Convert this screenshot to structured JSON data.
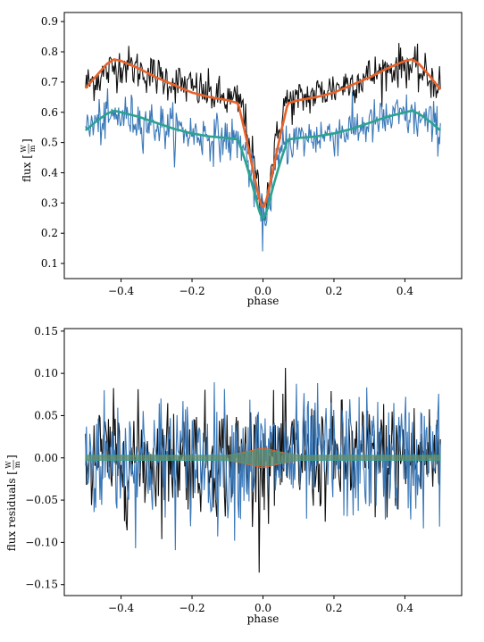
{
  "chart_data": [
    {
      "type": "line",
      "xlabel": "phase",
      "ylabel": "flux [W/m²]",
      "ylabel_main": "flux [",
      "ylabel_unit_num": "W",
      "ylabel_unit_den": "m",
      "ylabel_close": "]",
      "xlim": [
        -0.56,
        0.56
      ],
      "ylim": [
        0.05,
        0.93
      ],
      "xticks": [
        -0.4,
        -0.2,
        0.0,
        0.2,
        0.4
      ],
      "xtick_labels": [
        "−0.4",
        "−0.2",
        "0.0",
        "0.2",
        "0.4"
      ],
      "yticks": [
        0.1,
        0.2,
        0.3,
        0.4,
        0.5,
        0.6,
        0.7,
        0.8,
        0.9
      ],
      "ytick_labels": [
        "0.1",
        "0.2",
        "0.3",
        "0.4",
        "0.5",
        "0.6",
        "0.7",
        "0.8",
        "0.9"
      ],
      "grid": false,
      "series": [
        {
          "kind": "noisy",
          "color": "#111111",
          "x": [
            -0.5,
            -0.4,
            -0.3,
            -0.2,
            -0.1,
            -0.06,
            -0.03,
            0.0,
            0.03,
            0.06,
            0.1,
            0.2,
            0.3,
            0.4,
            0.5
          ],
          "values": [
            0.69,
            0.76,
            0.72,
            0.68,
            0.64,
            0.63,
            0.45,
            0.27,
            0.45,
            0.63,
            0.64,
            0.68,
            0.72,
            0.76,
            0.69
          ],
          "noise": 0.045
        },
        {
          "kind": "noisy",
          "color": "#3a78b8",
          "x": [
            -0.5,
            -0.4,
            -0.3,
            -0.2,
            -0.1,
            -0.06,
            -0.03,
            0.0,
            0.03,
            0.06,
            0.1,
            0.2,
            0.3,
            0.4,
            0.5
          ],
          "values": [
            0.55,
            0.59,
            0.56,
            0.53,
            0.51,
            0.5,
            0.38,
            0.23,
            0.38,
            0.5,
            0.51,
            0.53,
            0.56,
            0.59,
            0.55
          ],
          "noise": 0.05
        },
        {
          "kind": "model",
          "color": "#e8622a",
          "x": [
            -0.5,
            -0.47,
            -0.44,
            -0.42,
            -0.4,
            -0.35,
            -0.3,
            -0.25,
            -0.2,
            -0.15,
            -0.1,
            -0.07,
            -0.05,
            -0.03,
            -0.01,
            0.0,
            0.01,
            0.03,
            0.05,
            0.07,
            0.1,
            0.15,
            0.2,
            0.25,
            0.3,
            0.35,
            0.4,
            0.42,
            0.44,
            0.47,
            0.5
          ],
          "values": [
            0.68,
            0.72,
            0.76,
            0.775,
            0.77,
            0.745,
            0.715,
            0.69,
            0.665,
            0.65,
            0.64,
            0.63,
            0.53,
            0.42,
            0.31,
            0.28,
            0.31,
            0.42,
            0.53,
            0.63,
            0.64,
            0.65,
            0.665,
            0.69,
            0.715,
            0.745,
            0.77,
            0.775,
            0.76,
            0.72,
            0.675
          ]
        },
        {
          "kind": "model",
          "color": "#2aa38f",
          "x": [
            -0.5,
            -0.47,
            -0.44,
            -0.42,
            -0.4,
            -0.35,
            -0.3,
            -0.25,
            -0.2,
            -0.15,
            -0.1,
            -0.07,
            -0.05,
            -0.03,
            -0.01,
            0.0,
            0.01,
            0.03,
            0.05,
            0.07,
            0.1,
            0.15,
            0.2,
            0.25,
            0.3,
            0.35,
            0.4,
            0.42,
            0.44,
            0.47,
            0.5
          ],
          "values": [
            0.54,
            0.57,
            0.595,
            0.605,
            0.6,
            0.585,
            0.565,
            0.545,
            0.53,
            0.52,
            0.515,
            0.51,
            0.44,
            0.36,
            0.27,
            0.245,
            0.27,
            0.36,
            0.44,
            0.51,
            0.515,
            0.52,
            0.53,
            0.545,
            0.565,
            0.585,
            0.6,
            0.605,
            0.595,
            0.57,
            0.54
          ]
        }
      ]
    },
    {
      "type": "line",
      "xlabel": "phase",
      "ylabel": "flux residuals [W/m²]",
      "ylabel_main": "flux residuals [",
      "ylabel_unit_num": "W",
      "ylabel_unit_den": "m",
      "ylabel_close": "]",
      "xlim": [
        -0.56,
        0.56
      ],
      "ylim": [
        -0.163,
        0.153
      ],
      "xticks": [
        -0.4,
        -0.2,
        0.0,
        0.2,
        0.4
      ],
      "xtick_labels": [
        "−0.4",
        "−0.2",
        "0.0",
        "0.2",
        "0.4"
      ],
      "yticks": [
        -0.15,
        -0.1,
        -0.05,
        0.0,
        0.05,
        0.1,
        0.15
      ],
      "ytick_labels": [
        "−0.15",
        "−0.10",
        "−0.05",
        "0.00",
        "0.05",
        "0.10",
        "0.15"
      ],
      "grid": false,
      "series": [
        {
          "kind": "noisy",
          "color": "#111111",
          "x": [
            -0.5,
            0.5
          ],
          "values": [
            0.0,
            0.0
          ],
          "noise": 0.045
        },
        {
          "kind": "noisy",
          "color": "#3a78b8",
          "x": [
            -0.5,
            0.5
          ],
          "values": [
            0.0,
            0.0
          ],
          "noise": 0.05
        },
        {
          "kind": "band",
          "color": "#e8622a",
          "x": [
            -0.5,
            -0.1,
            -0.05,
            0.0,
            0.05,
            0.1,
            0.5
          ],
          "values": [
            0.003,
            0.003,
            0.007,
            0.012,
            0.007,
            0.003,
            0.003
          ]
        },
        {
          "kind": "band",
          "color": "#2aa38f",
          "x": [
            -0.5,
            -0.1,
            -0.05,
            0.0,
            0.05,
            0.1,
            0.5
          ],
          "values": [
            0.003,
            0.003,
            0.006,
            0.01,
            0.006,
            0.003,
            0.003
          ]
        }
      ]
    }
  ]
}
